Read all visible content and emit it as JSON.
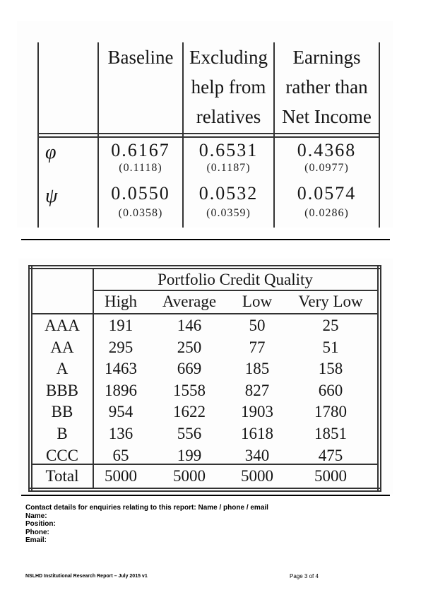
{
  "table1": {
    "headers": [
      [
        "Baseline"
      ],
      [
        "Excluding",
        "help from",
        "relatives"
      ],
      [
        "Earnings",
        "rather than",
        "Net Income"
      ]
    ],
    "rows": [
      {
        "symbol": "φ",
        "values": [
          "0.6167",
          "0.6531",
          "0.4368"
        ],
        "se": [
          "(0.1118)",
          "(0.1187)",
          "(0.0977)"
        ]
      },
      {
        "symbol": "ψ",
        "values": [
          "0.0550",
          "0.0532",
          "0.0574"
        ],
        "se": [
          "(0.0358)",
          "(0.0359)",
          "(0.0286)"
        ]
      }
    ]
  },
  "table2": {
    "group_header": "Portfolio Credit Quality",
    "columns": [
      "High",
      "Average",
      "Low",
      "Very Low"
    ],
    "rows": [
      {
        "label": "AAA",
        "values": [
          "191",
          "146",
          "50",
          "25"
        ]
      },
      {
        "label": "AA",
        "values": [
          "295",
          "250",
          "77",
          "51"
        ]
      },
      {
        "label": "A",
        "values": [
          "1463",
          "669",
          "185",
          "158"
        ]
      },
      {
        "label": "BBB",
        "values": [
          "1896",
          "1558",
          "827",
          "660"
        ]
      },
      {
        "label": "BB",
        "values": [
          "954",
          "1622",
          "1903",
          "1780"
        ]
      },
      {
        "label": "B",
        "values": [
          "136",
          "556",
          "1618",
          "1851"
        ]
      },
      {
        "label": "CCC",
        "values": [
          "65",
          "199",
          "340",
          "475"
        ]
      }
    ],
    "total": {
      "label": "Total",
      "values": [
        "5000",
        "5000",
        "5000",
        "5000"
      ]
    }
  },
  "contact": {
    "heading": "Contact details for enquiries relating to this report: Name / phone / email",
    "name_label": "Name:",
    "position_label": "Position:",
    "phone_label": "Phone:",
    "email_label": "Email:"
  },
  "footer": {
    "left": "NSLHD  Institutional Research Report  – July 2015 v1",
    "page": "Page 3 of 4"
  }
}
